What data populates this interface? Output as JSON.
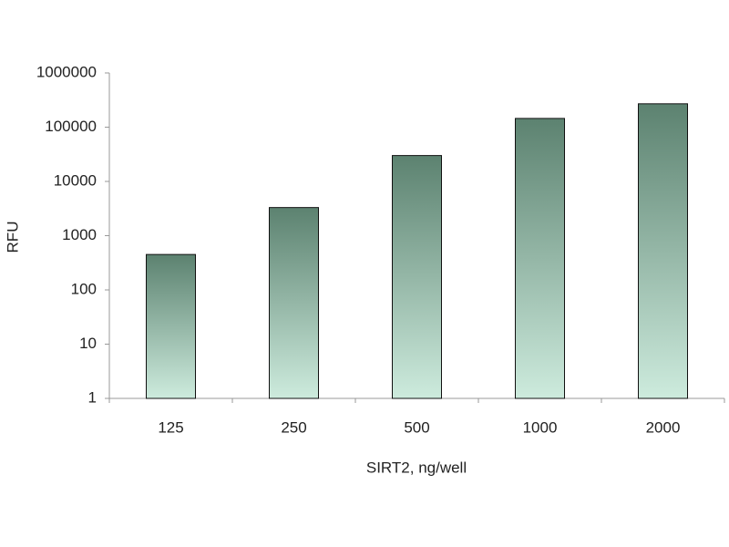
{
  "chart_data": {
    "type": "bar",
    "x_label": "SIRT2, ng/well",
    "y_label": "RFU",
    "categories": [
      "125",
      "250",
      "500",
      "1000",
      "2000"
    ],
    "values": [
      450,
      3300,
      30000,
      145000,
      270000
    ],
    "gradient": [
      "#5c8270",
      "#cdebdd"
    ],
    "ylim": [
      1,
      1000000
    ],
    "yticks": [
      1,
      10,
      100,
      1000,
      10000,
      100000,
      1000000
    ],
    "log_scale": true,
    "grid": false
  }
}
